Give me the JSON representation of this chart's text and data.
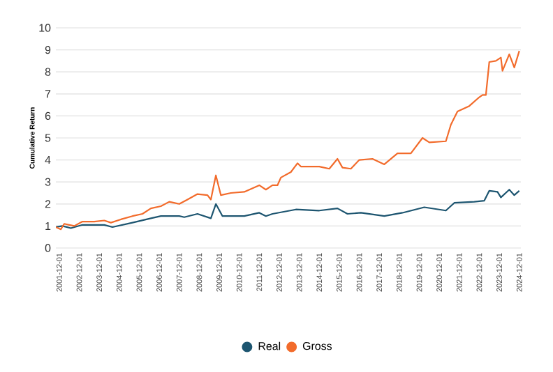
{
  "chart_data": {
    "type": "line",
    "ylabel": "Cumulative Return",
    "xlim": [
      "2001-10-01",
      "2025-01-01"
    ],
    "xticks": [
      "2001-12-01",
      "2002-12-01",
      "2003-12-01",
      "2004-12-01",
      "2005-12-01",
      "2006-12-01",
      "2007-12-01",
      "2008-12-01",
      "2009-12-01",
      "2010-12-01",
      "2011-12-01",
      "2012-12-01",
      "2013-12-01",
      "2014-12-01",
      "2015-12-01",
      "2016-12-01",
      "2017-12-01",
      "2018-12-01",
      "2019-12-01",
      "2020-12-01",
      "2021-12-01",
      "2022-12-01",
      "2023-12-01",
      "2024-12-01"
    ],
    "ylim": [
      0,
      10
    ],
    "yticks": [
      0,
      1,
      2,
      3,
      4,
      5,
      6,
      7,
      8,
      9,
      10
    ],
    "grid": "y",
    "legend": "bottom",
    "marker": "none",
    "series": [
      {
        "name": "Real",
        "color": "#1d5570",
        "x": [
          "2001-10",
          "2002-02",
          "2002-07",
          "2003-02",
          "2004-03",
          "2004-08",
          "2005-08",
          "2006-07",
          "2007-01",
          "2007-12",
          "2008-03",
          "2008-11",
          "2009-07",
          "2009-10",
          "2010-02",
          "2011-03",
          "2011-12",
          "2012-04",
          "2012-08",
          "2013-10",
          "2014-12",
          "2015-11",
          "2016-05",
          "2017-01",
          "2018-03",
          "2019-02",
          "2020-03",
          "2021-04",
          "2021-09",
          "2022-09",
          "2023-03",
          "2023-06",
          "2023-11",
          "2024-01",
          "2024-06",
          "2024-09",
          "2024-12"
        ],
        "values": [
          0.95,
          1.0,
          0.9,
          1.05,
          1.05,
          0.95,
          1.15,
          1.35,
          1.45,
          1.45,
          1.4,
          1.55,
          1.35,
          2.0,
          1.45,
          1.45,
          1.6,
          1.45,
          1.55,
          1.75,
          1.7,
          1.8,
          1.55,
          1.6,
          1.45,
          1.6,
          1.85,
          1.7,
          2.05,
          2.1,
          2.15,
          2.6,
          2.55,
          2.3,
          2.65,
          2.4,
          2.6
        ]
      },
      {
        "name": "Gross",
        "color": "#f26b2b",
        "x": [
          "2001-10",
          "2002-01",
          "2002-03",
          "2002-06",
          "2002-09",
          "2003-02",
          "2003-09",
          "2004-03",
          "2004-07",
          "2005-01",
          "2005-08",
          "2006-02",
          "2006-07",
          "2007-01",
          "2007-06",
          "2007-12",
          "2008-05",
          "2008-11",
          "2009-05",
          "2009-07",
          "2009-10",
          "2010-01",
          "2010-07",
          "2011-03",
          "2011-12",
          "2012-04",
          "2012-08",
          "2012-11",
          "2013-01",
          "2013-07",
          "2013-11",
          "2014-01",
          "2014-12",
          "2015-06",
          "2015-11",
          "2016-02",
          "2016-07",
          "2016-12",
          "2017-08",
          "2018-03",
          "2018-11",
          "2019-07",
          "2020-02",
          "2020-06",
          "2021-04",
          "2021-07",
          "2021-11",
          "2022-06",
          "2022-12",
          "2023-02",
          "2023-04",
          "2023-06",
          "2023-10",
          "2024-01",
          "2024-02",
          "2024-06",
          "2024-09",
          "2024-12"
        ],
        "values": [
          0.95,
          0.85,
          1.1,
          1.05,
          1.0,
          1.2,
          1.2,
          1.25,
          1.15,
          1.3,
          1.45,
          1.55,
          1.8,
          1.9,
          2.1,
          2.0,
          2.2,
          2.45,
          2.4,
          2.2,
          3.3,
          2.4,
          2.5,
          2.55,
          2.85,
          2.65,
          2.85,
          2.85,
          3.2,
          3.45,
          3.85,
          3.7,
          3.7,
          3.6,
          4.05,
          3.65,
          3.6,
          4.0,
          4.05,
          3.8,
          4.3,
          4.3,
          5.0,
          4.8,
          4.85,
          5.6,
          6.2,
          6.45,
          6.85,
          6.95,
          6.95,
          8.45,
          8.5,
          8.65,
          8.05,
          8.8,
          8.2,
          8.95
        ]
      }
    ]
  }
}
